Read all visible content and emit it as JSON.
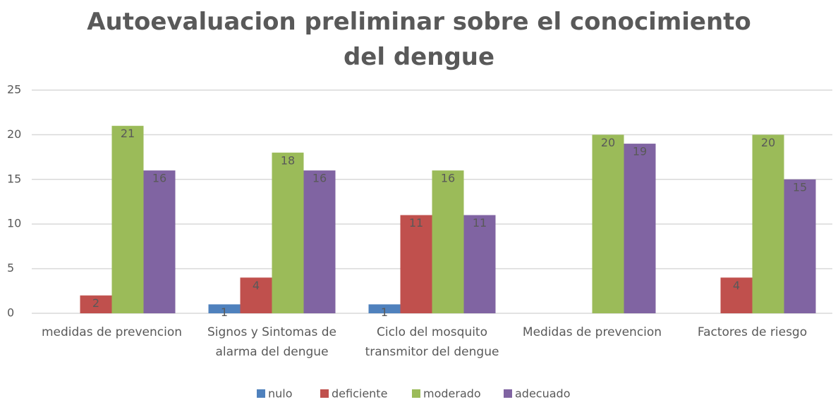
{
  "chart_data": {
    "type": "bar",
    "title": "Autoevaluacion preliminar sobre el conocimiento del dengue",
    "categories": [
      "medidas de prevencion",
      "Signos y Sintomas de alarma del dengue",
      "Ciclo del mosquito transmitor del dengue",
      "Medidas de prevencion",
      "Factores de riesgo"
    ],
    "series": [
      {
        "name": "nulo",
        "color": "#4f81bd",
        "values": [
          null,
          1,
          1,
          null,
          null
        ]
      },
      {
        "name": "deficiente",
        "color": "#c0504d",
        "values": [
          2,
          4,
          11,
          null,
          4
        ]
      },
      {
        "name": "moderado",
        "color": "#9bbb59",
        "values": [
          21,
          18,
          16,
          20,
          20
        ]
      },
      {
        "name": "adecuado",
        "color": "#8064a2",
        "values": [
          16,
          16,
          11,
          19,
          15
        ]
      }
    ],
    "ylim": [
      0,
      25
    ],
    "yticks": [
      0,
      5,
      10,
      15,
      20,
      25
    ],
    "grid": true,
    "legend": "bottom"
  }
}
